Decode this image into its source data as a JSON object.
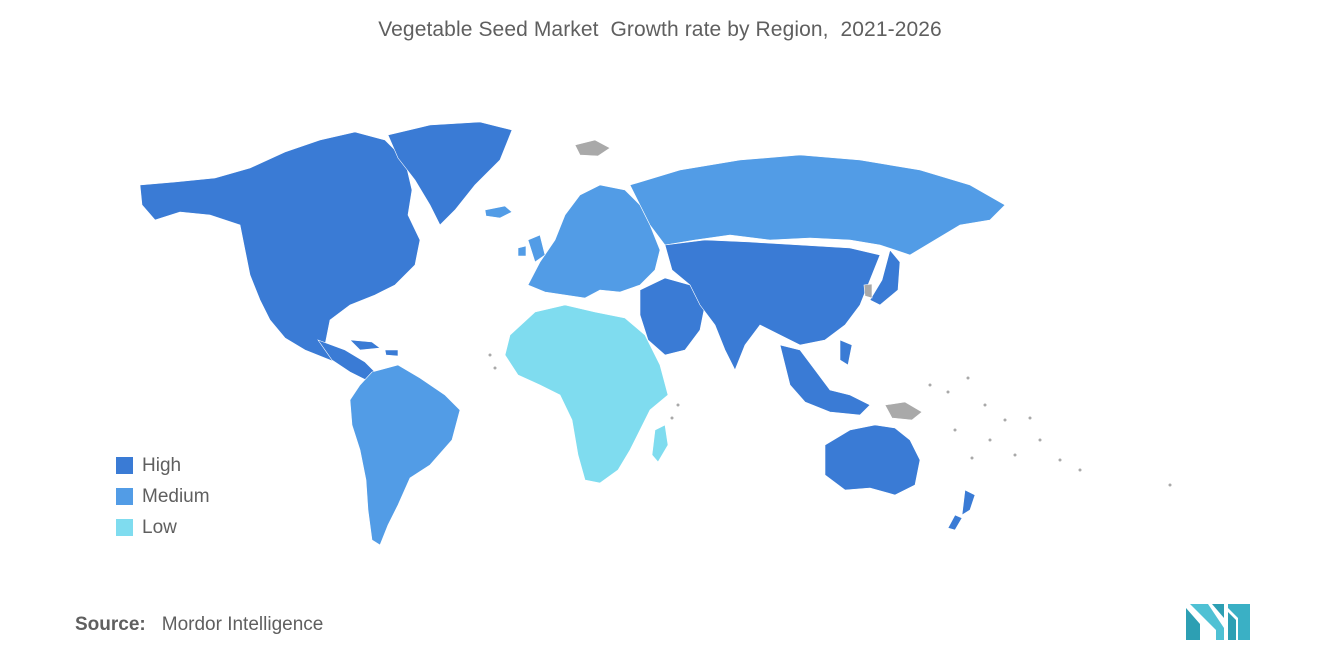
{
  "title": "Vegetable Seed Market  Growth rate by Region,  2021-2026",
  "legend": {
    "items": [
      {
        "label": "High",
        "color": "#3a7bd5"
      },
      {
        "label": "Medium",
        "color": "#529ce6"
      },
      {
        "label": "Low",
        "color": "#7fdcef"
      }
    ],
    "no_data_color": "#a9a9a9"
  },
  "regions": {
    "north_america": "High",
    "greenland": "High",
    "south_america": "Medium",
    "europe": "Medium",
    "russia": "Medium",
    "africa": "Low",
    "middle_east": "High",
    "asia": "High",
    "southeast_asia": "High",
    "australia": "High",
    "new_zealand": "High"
  },
  "source": {
    "label": "Source:",
    "value": "Mordor Intelligence"
  },
  "logo": "mordor-intelligence-logo"
}
